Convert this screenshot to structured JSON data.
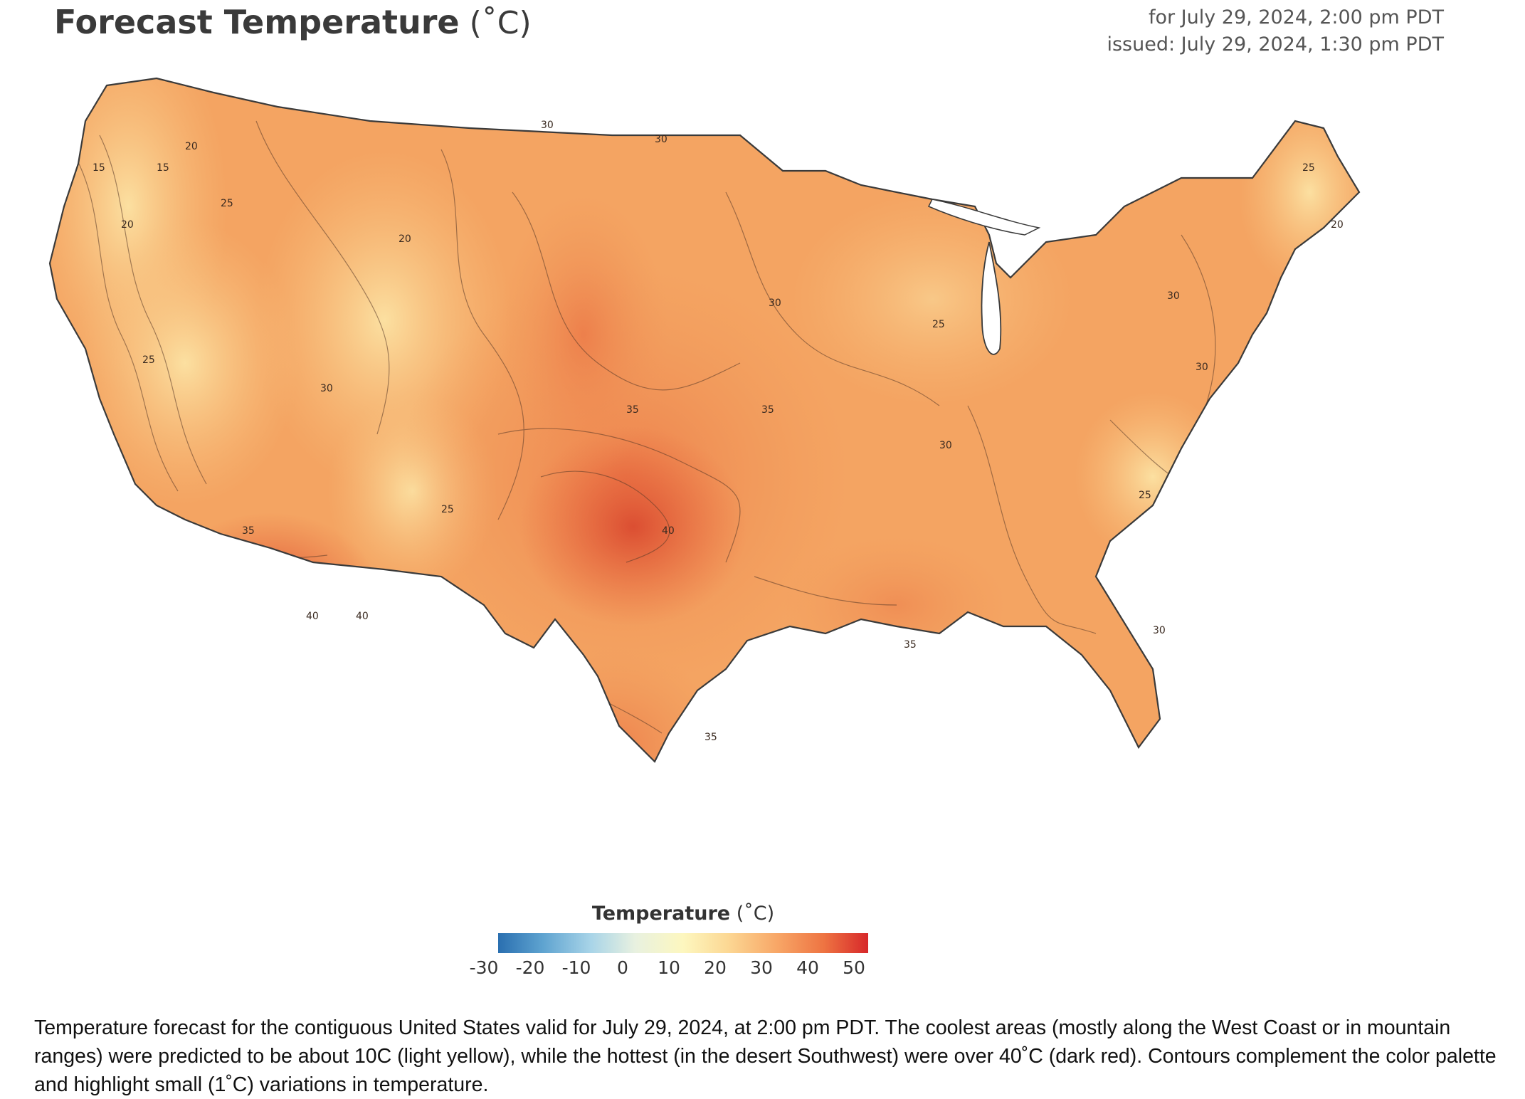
{
  "header": {
    "title": "Forecast Temperature",
    "title_unit": "(˚C)",
    "valid_for": "for July 29, 2024, 2:00 pm PDT",
    "issued": "issued: July 29, 2024, 1:30 pm PDT"
  },
  "legend": {
    "title": "Temperature",
    "unit": "(˚C)",
    "ticks": [
      "-30",
      "-20",
      "-10",
      "0",
      "10",
      "20",
      "30",
      "40",
      "50"
    ],
    "colors": [
      "#2a6fb0",
      "#a8d4e8",
      "#fdf7bf",
      "#f8a868",
      "#d7282a"
    ]
  },
  "map": {
    "land_color": "#f4a462",
    "cool_color": "#fbd790",
    "hot_color": "#e8653c",
    "hottest_color": "#d9472e",
    "outline_color": "#3a3a3a",
    "contour_labels": [
      "15",
      "20",
      "25",
      "30",
      "35",
      "40"
    ]
  },
  "caption": "Temperature forecast for the contiguous United States valid for July 29, 2024, at 2:00 pm PDT. The coolest areas (mostly along the West Coast or in mountain ranges) were predicted to be about 10C (light yellow), while the hottest (in the desert Southwest) were over 40˚C (dark red). Contours complement the color palette and highlight small (1˚C) variations in temperature."
}
